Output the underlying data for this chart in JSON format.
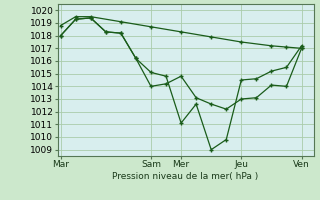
{
  "fig_background": "#cce8cc",
  "plot_background": "#d8eeee",
  "grid_color": "#aaccaa",
  "line_color": "#1a5c1a",
  "ylabel": "Pression niveau de la mer( hPa )",
  "ylim": [
    1008.5,
    1020.5
  ],
  "yticks": [
    1009,
    1010,
    1011,
    1012,
    1013,
    1014,
    1015,
    1016,
    1017,
    1018,
    1019,
    1020
  ],
  "xtick_labels": [
    "Mar",
    "",
    "Sam",
    "Mer",
    "",
    "Jeu",
    "",
    "Ven"
  ],
  "vline_positions": [
    0,
    3,
    4,
    6,
    8
  ],
  "vline_labels": [
    "Mar",
    "Sam",
    "Mer",
    "Jeu",
    "Ven"
  ],
  "xlim": [
    -0.1,
    8.4
  ],
  "series": [
    {
      "x": [
        0,
        0.5,
        1.0,
        1.5,
        2.0,
        2.5,
        3.0,
        3.5,
        4.0,
        4.5,
        5.0,
        5.5,
        6.0,
        6.5,
        7.0,
        7.5,
        8.0
      ],
      "y": [
        1018.0,
        1019.3,
        1019.4,
        1018.3,
        1018.2,
        1016.2,
        1014.0,
        1014.2,
        1014.8,
        1013.1,
        1012.6,
        1012.2,
        1013.0,
        1013.1,
        1014.1,
        1014.0,
        1017.0
      ]
    },
    {
      "x": [
        0,
        0.5,
        1.0,
        1.5,
        2.0,
        2.5,
        3.0,
        3.5,
        4.0,
        4.5,
        5.0,
        5.5,
        6.0,
        6.5,
        7.0,
        7.5,
        8.0
      ],
      "y": [
        1018.0,
        1019.3,
        1019.4,
        1018.3,
        1018.2,
        1016.2,
        1015.1,
        1014.8,
        1011.1,
        1012.6,
        1009.0,
        1009.8,
        1014.5,
        1014.6,
        1015.2,
        1015.5,
        1017.2
      ]
    },
    {
      "x": [
        0,
        0.5,
        1.0,
        2.0,
        3.0,
        4.0,
        5.0,
        6.0,
        7.0,
        7.5,
        8.0
      ],
      "y": [
        1018.8,
        1019.5,
        1019.5,
        1019.1,
        1018.7,
        1018.3,
        1017.9,
        1017.5,
        1017.2,
        1017.1,
        1017.0
      ]
    }
  ]
}
